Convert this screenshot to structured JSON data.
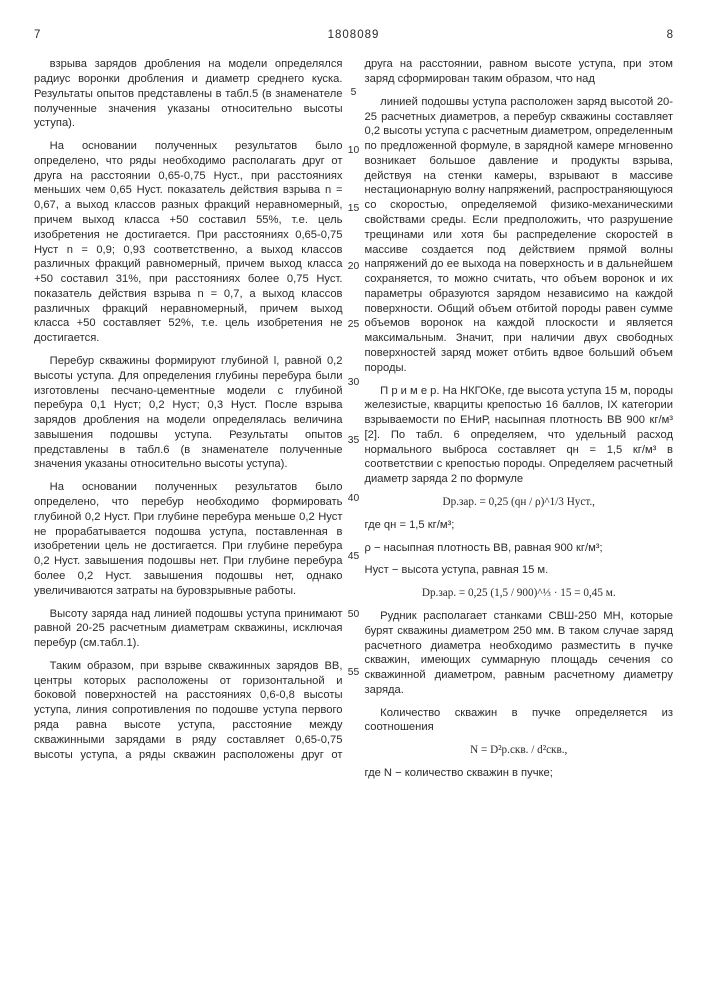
{
  "head": {
    "pageLeft": "7",
    "docNumber": "1808089",
    "pageRight": "8"
  },
  "lineNumbers": [
    "5",
    "10",
    "15",
    "20",
    "25",
    "30",
    "35",
    "40",
    "45",
    "50",
    "55"
  ],
  "lineNumbersTop": [
    28,
    86,
    144,
    202,
    260,
    318,
    376,
    434,
    492,
    550,
    608
  ],
  "paras": {
    "p1": "взрыва зарядов дробления на модели определялся радиус воронки дробления и диаметр среднего куска. Результаты опытов представлены в табл.5 (в знаменателе полученные значения указаны относительно высоты уступа).",
    "p2": "На основании полученных результатов было определено, что ряды необходимо располагать друг от друга на расстоянии 0,65-0,75 Нуст., при расстояниях меньших чем 0,65 Нуст. показатель действия взрыва n = 0,67, а выход классов разных фракций неравномерный, причем выход класса +50 составил 55%, т.е. цель изобретения не достигается. При расстояниях 0,65-0,75 Нуст n = 0,9; 0,93 соответственно, а выход классов различных фракций равномерный, причем выход класса +50 составил 31%, при расстояниях более 0,75 Нуст. показатель действия взрыва n = 0,7, а выход классов различных фракций неравномерный, причем выход класса +50 составляет 52%, т.е. цель изобретения не достигается.",
    "p3": "Перебур скважины формируют глубиной l, равной 0,2 высоты уступа. Для определения глубины перебура были изготовлены песчано-цементные модели с глубиной перебура 0,1 Нуст; 0,2 Нуст; 0,3 Нуст. После взрыва зарядов дробления на модели определялась величина завышения подошвы уступа. Результаты опытов представлены в табл.6 (в знаменателе полученные значения указаны относительно высоты уступа).",
    "p4": "На основании полученных результатов было определено, что перебур необходимо формировать глубиной 0,2 Нуст. При глубине перебура меньше 0,2 Нуст не прорабатывается подошва уступа, поставленная в изобретении цель не достигается. При глубине перебура 0,2 Нуст. завышения подошвы нет. При глубине перебура более 0,2 Нуст. завышения подошвы нет, однако увеличиваются затраты на буровзрывные работы.",
    "p5": "Высоту заряда над линией подошвы уступа принимают равной 20-25 расчетным диаметрам скважины, исключая перебур (см.табл.1).",
    "p6": "Таким образом, при взрыве скважинных зарядов ВВ, центры которых расположены от горизонтальной и боковой поверхностей на расстояниях 0,6-0,8 высоты уступа, линия сопротивления по подошве уступа первого ряда равна высоте уступа, расстояние между скважинными зарядами в ряду составляет 0,65-0,75 высоты уступа, а ряды скважин расположены друг от друга на расстоянии, равном высоте уступа, при этом заряд сформирован таким образом, что над",
    "p7": "линией подошвы уступа расположен заряд высотой 20-25 расчетных диаметров, а перебур скважины составляет 0,2 высоты уступа с расчетным диаметром, определенным по предложенной формуле, в зарядной камере мгновенно возникает большое давление и продукты взрыва, действуя на стенки камеры, взрывают в массиве нестационарную волну напряжений, распространяющуюся со скоростью, определяемой физико-механическими свойствами среды. Если предположить, что разрушение трещинами или хотя бы распределение скоростей в массиве создается под действием прямой волны напряжений до ее выхода на поверхность и в дальнейшем сохраняется, то можно считать, что объем воронок и их параметры образуются зарядом независимо на каждой поверхности. Общий объем отбитой породы равен сумме объемов воронок на каждой плоскости и является максимальным. Значит, при наличии двух свободных поверхностей заряд может отбить вдвое больший объем породы.",
    "p8": "П р и м е р. На НКГОКе, где высота уступа 15 м, породы железистые, кварциты крепостью 16 баллов, IX категории взрываемости по ЕНиР, насыпная плотность ВВ 900 кг/м³ [2]. По табл. 6 определяем, что удельный расход нормального выброса составляет qн = 1,5 кг/м³ в соответствии с крепостью породы. Определяем расчетный диаметр заряда 2 по формуле",
    "f1": "Dр.зар. = 0,25 (qн / ρ)^1/3 Нуст.,",
    "p9a": "где qн = 1,5 кг/м³;",
    "p9b": "ρ − насыпная плотность ВВ, равная 900 кг/м³;",
    "p9c": "Нуст − высота уступа, равная 15 м.",
    "f2": "Dр.зар. = 0,25 (1,5 / 900)^⅓ · 15 = 0,45 м.",
    "p10": "Рудник располагает станками СВШ-250 МН, которые бурят скважины диаметром 250 мм. В таком случае заряд расчетного диаметра необходимо разместить в пучке скважин, имеющих суммарную площадь сечения со скважинной диаметром, равным расчетному диаметру заряда.",
    "p11": "Количество скважин в пучке определяется из соотношения",
    "f3": "N = D²р.скв. / d²скв.,",
    "p12": "где N − количество скважин в пучке;"
  }
}
